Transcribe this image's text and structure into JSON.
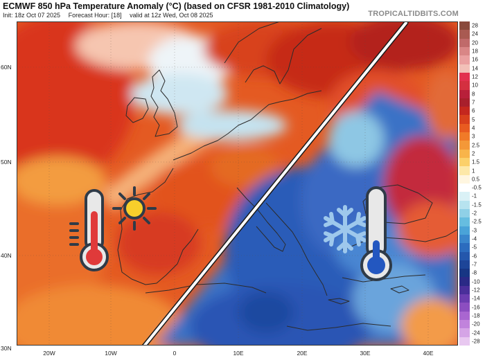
{
  "header": {
    "title": "ECMWF 850 hPa Temperature Anomaly (°C) (based on CFSR 1981-2010 Climatology)",
    "init": "Init: 18z Oct 07 2025",
    "forecast_hour": "Forecast Hour: [18]",
    "valid": "valid at 12z Wed, Oct 08 2025",
    "brand": "TROPICALTIDBITS.COM"
  },
  "axes": {
    "lat_labels": [
      "60N",
      "50N",
      "40N",
      "30N"
    ],
    "lon_labels": [
      "20W",
      "10W",
      "0",
      "10E",
      "20E",
      "30E",
      "40E"
    ]
  },
  "colorbar": {
    "labels": [
      "28",
      "24",
      "20",
      "18",
      "16",
      "14",
      "12",
      "10",
      "8",
      "7",
      "6",
      "5",
      "4",
      "3",
      "2.5",
      "2",
      "1.5",
      "1",
      "0.5",
      "-0.5",
      "-1",
      "-1.5",
      "-2",
      "-2.5",
      "-3",
      "-4",
      "-5",
      "-6",
      "-7",
      "-8",
      "-10",
      "-12",
      "-14",
      "-16",
      "-18",
      "-20",
      "-24",
      "-28"
    ],
    "colors": [
      "#8a4a3c",
      "#a95a52",
      "#c06a6a",
      "#d98686",
      "#eaa0a0",
      "#f2c0b8",
      "#e2304e",
      "#d42f40",
      "#b8203a",
      "#a81f2c",
      "#c4271e",
      "#d8401c",
      "#e85b20",
      "#f07a28",
      "#f49838",
      "#f8b44a",
      "#fbd06a",
      "#fde8a8",
      "#fff6e0",
      "#ffffff",
      "#daf1f6",
      "#b7e3ef",
      "#8fd0e7",
      "#66bde0",
      "#4aa3d8",
      "#3a86cc",
      "#2c6cbe",
      "#2457ac",
      "#1d4598",
      "#173684",
      "#2a2a86",
      "#4a2f9a",
      "#6c3db0",
      "#8c4ec0",
      "#a966d0",
      "#c183dc",
      "#d5a4e6",
      "#e8c8f0"
    ]
  },
  "map": {
    "icons": [
      "thermometer-hot-icon",
      "sun-icon",
      "snowflake-icon",
      "thermometer-cold-icon"
    ],
    "colors": {
      "warm": "#e04a1c",
      "cold": "#2357c0",
      "land_border": "#2b2b2b"
    }
  }
}
